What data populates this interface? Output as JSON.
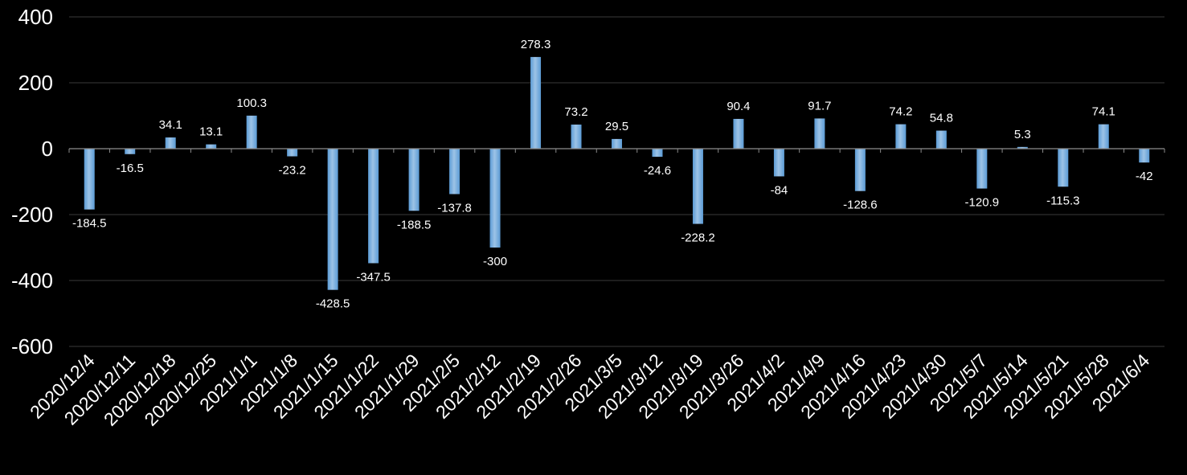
{
  "chart_data": {
    "type": "bar",
    "categories": [
      "2020/12/4",
      "2020/12/11",
      "2020/12/18",
      "2020/12/25",
      "2021/1/1",
      "2021/1/8",
      "2021/1/15",
      "2021/1/22",
      "2021/1/29",
      "2021/2/5",
      "2021/2/12",
      "2021/2/19",
      "2021/2/26",
      "2021/3/5",
      "2021/3/12",
      "2021/3/19",
      "2021/3/26",
      "2021/4/2",
      "2021/4/9",
      "2021/4/16",
      "2021/4/23",
      "2021/4/30",
      "2021/5/7",
      "2021/5/14",
      "2021/5/21",
      "2021/5/28",
      "2021/6/4"
    ],
    "values": [
      -184.5,
      -16.5,
      34.1,
      13.1,
      100.3,
      -23.2,
      -428.5,
      -347.5,
      -188.5,
      -137.8,
      -300,
      278.3,
      73.2,
      29.5,
      -24.6,
      -228.2,
      90.4,
      -84,
      91.7,
      -128.6,
      74.2,
      54.8,
      -120.9,
      5.3,
      -115.3,
      74.1,
      -42
    ],
    "data_labels": [
      "-184.5",
      "-16.5",
      "34.1",
      "13.1",
      "100.3",
      "-23.2",
      "-428.5",
      "-347.5",
      "-188.5",
      "-137.8",
      "-300",
      "278.3",
      "73.2",
      "29.5",
      "-24.6",
      "-228.2",
      "90.4",
      "-84",
      "91.7",
      "-128.6",
      "74.2",
      "54.8",
      "-120.9",
      "5.3",
      "-115.3",
      "74.1",
      "-42"
    ],
    "y_ticks": [
      "400",
      "200",
      "0",
      "-200",
      "-400",
      "-600"
    ],
    "ylim": [
      -600,
      400
    ],
    "grid": true,
    "title": "",
    "xlabel": "",
    "ylabel": "",
    "colors": {
      "background": "#000000",
      "bar": "#5b9bd5",
      "bar_highlight": "#9dc3e6",
      "grid": "#3a3a3a",
      "axis": "#8c8c8c",
      "text": "#ffffff"
    }
  }
}
